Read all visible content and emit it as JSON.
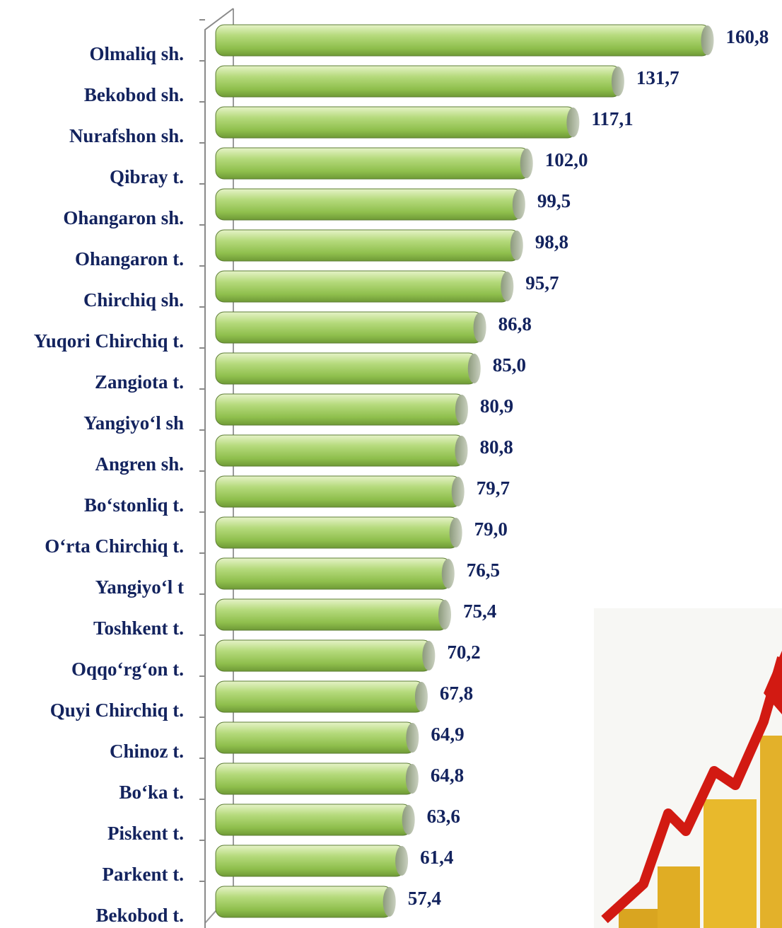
{
  "chart_data": {
    "type": "bar",
    "orientation": "horizontal",
    "categories": [
      "Olmaliq sh.",
      "Bekobod sh.",
      "Nurafshon sh.",
      "Qibray t.",
      "Ohangaron sh.",
      "Ohangaron t.",
      "Chirchiq sh.",
      "Yuqori Chirchiq t.",
      "Zangiota t.",
      "Yangiyo‘l sh",
      "Angren sh.",
      "Bo‘stonliq t.",
      "O‘rta Chirchiq t.",
      "Yangiyo‘l t",
      "Toshkent t.",
      "Oqqo‘rg‘on t.",
      "Quyi Chirchiq t.",
      "Chinoz t.",
      "Bo‘ka t.",
      "Piskent t.",
      "Parkent t.",
      "Bekobod t."
    ],
    "values": [
      160.8,
      131.7,
      117.1,
      102.0,
      99.5,
      98.8,
      95.7,
      86.8,
      85.0,
      80.9,
      80.8,
      79.7,
      79.0,
      76.5,
      75.4,
      70.2,
      67.8,
      64.9,
      64.8,
      63.6,
      61.4,
      57.4
    ],
    "value_labels": [
      "160,8",
      "131,7",
      "117,1",
      "102,0",
      "99,5",
      "98,8",
      "95,7",
      "86,8",
      "85,0",
      "80,9",
      "80,8",
      "79,7",
      "79,0",
      "76,5",
      "75,4",
      "70,2",
      "67,8",
      "64,9",
      "64,8",
      "63,6",
      "61,4",
      "57,4"
    ],
    "color": "#9ccc5a"
  }
}
